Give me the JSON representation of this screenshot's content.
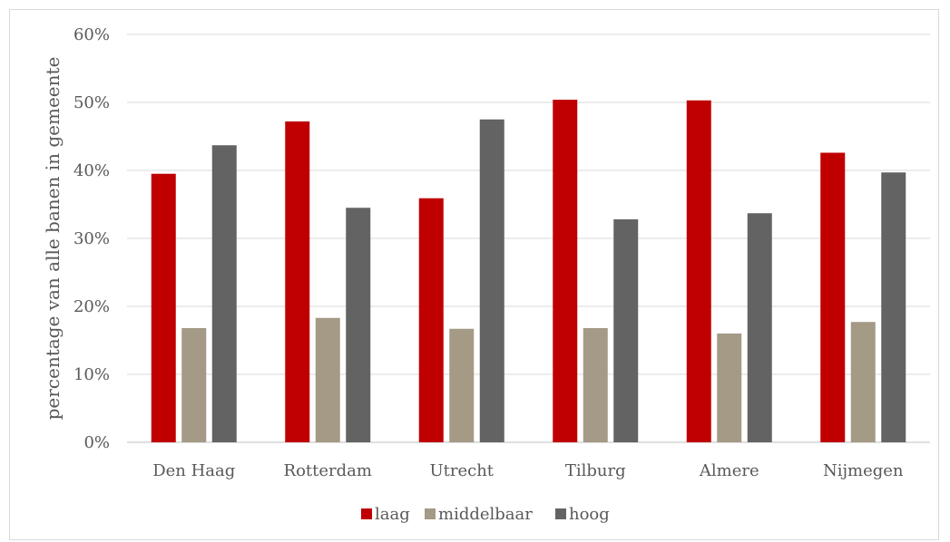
{
  "chart_data": {
    "type": "bar",
    "ylabel": "percentage van alle banen in gemeente",
    "ylim": [
      0,
      60
    ],
    "yticks": [
      "0%",
      "10%",
      "20%",
      "30%",
      "40%",
      "50%",
      "60%"
    ],
    "categories": [
      "Den Haag",
      "Rotterdam",
      "Utrecht",
      "Tilburg",
      "Almere",
      "Nijmegen"
    ],
    "series": [
      {
        "name": "laag",
        "color": "#c00000",
        "values": [
          39.5,
          47.2,
          35.9,
          50.4,
          50.3,
          42.6
        ]
      },
      {
        "name": "middelbaar",
        "color": "#a49a86",
        "values": [
          16.8,
          18.3,
          16.7,
          16.8,
          16.0,
          17.7
        ]
      },
      {
        "name": "hoog",
        "color": "#636363",
        "values": [
          43.7,
          34.5,
          47.5,
          32.8,
          33.7,
          39.7
        ]
      }
    ],
    "grid": true,
    "legend_position": "bottom"
  }
}
